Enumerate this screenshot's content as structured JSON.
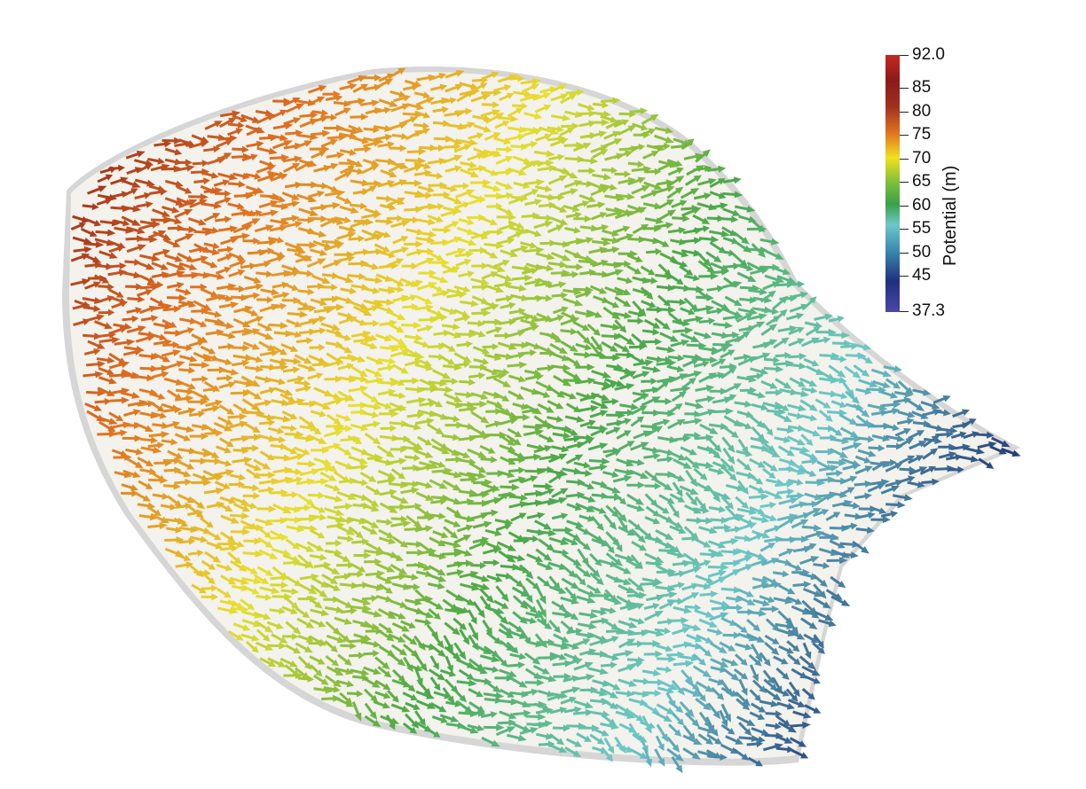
{
  "colorbar": {
    "title": "Potential (m)",
    "max_label": "92.0",
    "min_label": "37.3",
    "ticks": [
      "85",
      "80",
      "75",
      "70",
      "65",
      "60",
      "55",
      "50",
      "45"
    ],
    "min": 37.3,
    "max": 92.0
  },
  "colors": {
    "background": "#ffffff",
    "domain_fill": "#f4f2ec",
    "domain_edge": "#cccccc",
    "high": "#8b1a1a",
    "mid_orange": "#e07020",
    "mid_yellow": "#e8e030",
    "mid_green": "#4aa848",
    "mid_cyan": "#6cc8c8",
    "low": "#1a2a70"
  }
}
